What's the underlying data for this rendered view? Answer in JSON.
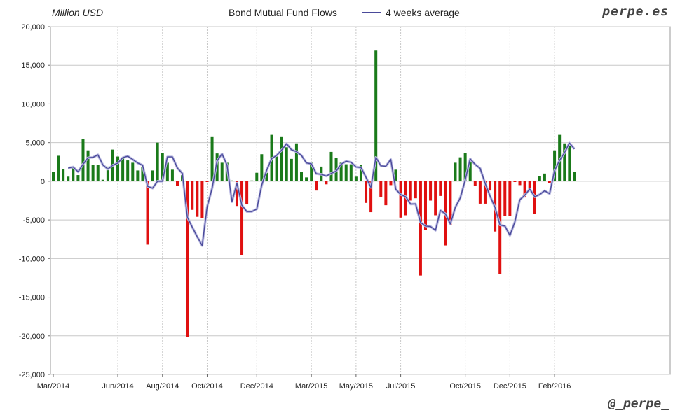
{
  "header": {
    "unit_label": "Million USD",
    "title": "Bond Mutual Fund Flows",
    "legend_label": "4 weeks average",
    "brand": "perpe.es",
    "handle": "@_perpe_"
  },
  "colors": {
    "positive": "#1a7a1a",
    "negative": "#e01010",
    "average_line": "#4a4a9a",
    "grid": "#c8c8c8"
  },
  "chart_data": {
    "type": "bar",
    "ylim": [
      -25000,
      20000
    ],
    "y_ticks": [
      20000,
      15000,
      10000,
      5000,
      0,
      -5000,
      -10000,
      -15000,
      -20000,
      -25000
    ],
    "y_tick_labels": [
      "20,000",
      "15,000",
      "10,000",
      "5,000",
      "0",
      "-5,000",
      "-10,000",
      "-15,000",
      "-20,000",
      "-25,000"
    ],
    "x_tick_labels": [
      "Mar/2014",
      "Jun/2014",
      "Aug/2014",
      "Oct/2014",
      "Dec/2014",
      "Mar/2015",
      "May/2015",
      "Jul/2015",
      "Oct/2015",
      "Dec/2015",
      "Feb/2016"
    ],
    "x_tick_week_index": [
      0,
      13,
      22,
      31,
      41,
      52,
      61,
      70,
      83,
      92,
      101
    ],
    "grid": true,
    "series": [
      {
        "values": [
          1200,
          3300,
          1600,
          600,
          1900,
          800,
          5500,
          4000,
          2100,
          2100,
          200,
          1900,
          4100,
          3200,
          3000,
          2700,
          2400,
          1400,
          1800,
          -8200,
          1400,
          5000,
          3700,
          2400,
          1500,
          -600,
          800,
          -20200,
          -3700,
          -4600,
          -4800,
          -100,
          5800,
          3600,
          2400,
          2400,
          100,
          -3200,
          -9600,
          -3000,
          100,
          1100,
          3500,
          1100,
          6000,
          3200,
          5800,
          4400,
          2900,
          4900,
          1200,
          500,
          2400,
          -1200,
          1900,
          -400,
          3800,
          3000,
          2400,
          2200,
          2200,
          600,
          2100,
          -2800,
          -4000,
          16900,
          -2000,
          -3100,
          -500,
          1500,
          -4700,
          -4400,
          -2500,
          -2200,
          -12200,
          -6300,
          -2500,
          -4400,
          -1900,
          -8300,
          -5700,
          2400,
          3100,
          3700,
          2500,
          -600,
          -2900,
          -2900,
          -1200,
          -6500,
          -12000,
          -4500,
          -4500,
          -100,
          -500,
          -2100,
          -1300,
          -4200,
          700,
          1000,
          -200,
          4000,
          6000,
          4900,
          4600,
          1200
        ]
      },
      {
        "name": "4 weeks average",
        "values": [
          null,
          null,
          null,
          1700,
          1850,
          1225,
          2200,
          3050,
          3100,
          3425,
          2100,
          1575,
          2075,
          2350,
          3050,
          3250,
          2825,
          2375,
          2075,
          -650,
          -900,
          0,
          0,
          3150,
          3150,
          1725,
          1025,
          -4625,
          -5925,
          -7175,
          -8325,
          -3300,
          -900,
          2625,
          3550,
          2100,
          -2650,
          -250,
          -3100,
          -3925,
          -3925,
          -3600,
          -500,
          1425,
          2925,
          3350,
          4025,
          4850,
          4075,
          3825,
          3350,
          2375,
          2250,
          975,
          900,
          675,
          1025,
          1325,
          2200,
          2600,
          2450,
          1850,
          1775,
          525,
          -800,
          3100,
          2000,
          1950,
          2825,
          -1025,
          -1725,
          -2000,
          -2950,
          -2925,
          -5325,
          -5800,
          -5850,
          -6350,
          -3775,
          -4200,
          -5525,
          -3375,
          -2150,
          150,
          2900,
          2175,
          1675,
          -250,
          -1900,
          -3375,
          -5650,
          -5800,
          -7000,
          -5275,
          -2400,
          -1800,
          -1000,
          -2000,
          -1725,
          -1225,
          -1600,
          1375,
          2700,
          3675,
          4950,
          4175
        ]
      }
    ]
  }
}
